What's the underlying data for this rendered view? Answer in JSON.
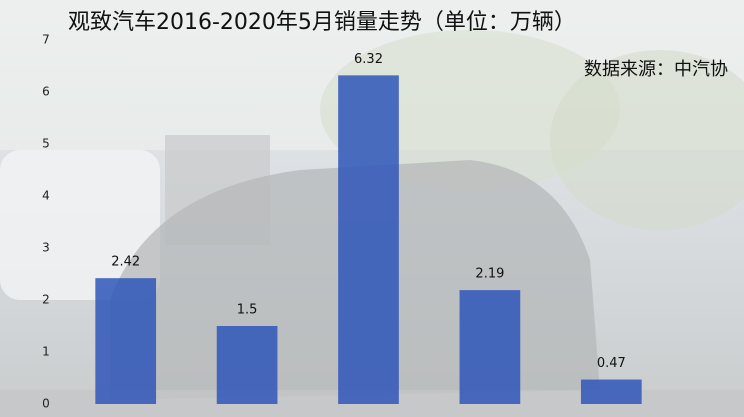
{
  "chart_data": {
    "type": "bar",
    "title": "观致汽车2016-2020年5月销量走势（单位：万辆）",
    "subtitle": "数据来源：中汽协",
    "categories": [
      null,
      null,
      null,
      null,
      null
    ],
    "values": [
      2.42,
      1.5,
      6.32,
      2.19,
      0.47
    ],
    "color": "#2f56b8",
    "ylim": [
      0,
      7
    ],
    "yticks": [
      0,
      1,
      2,
      3,
      4,
      5,
      6,
      7
    ],
    "grid": false
  }
}
